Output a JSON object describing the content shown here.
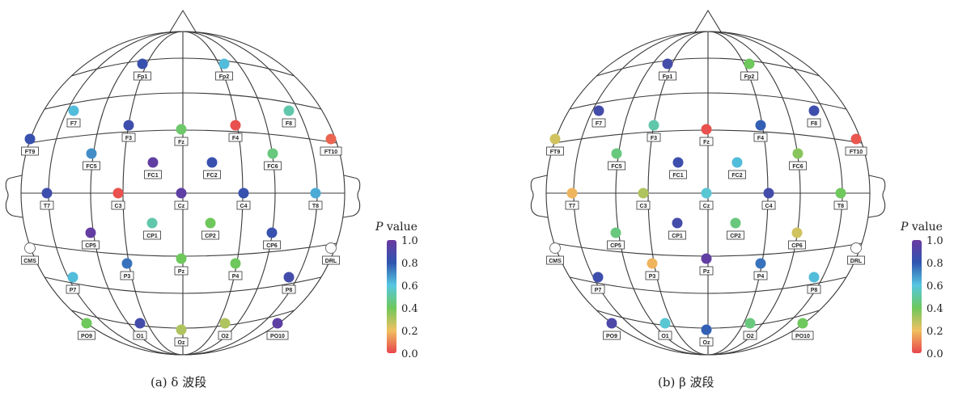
{
  "colors": {
    "stops": [
      "#e8454c",
      "#f0c060",
      "#6ec85c",
      "#56c7e0",
      "#2f55b0",
      "#6a3aa0"
    ],
    "stop_values": [
      0.0,
      0.2,
      0.4,
      0.6,
      0.8,
      1.0
    ],
    "outline": "#3a3a3a",
    "unmeasured_fill": "#ffffff"
  },
  "colorbar": {
    "title_italic": "P",
    "title_rest": " value",
    "ticks": [
      "1.0",
      "0.8",
      "0.6",
      "0.4",
      "0.2",
      "0.0"
    ]
  },
  "panels": [
    {
      "caption": "(a) δ 波段",
      "electrodes": [
        {
          "name": "Fp1",
          "p": 0.83
        },
        {
          "name": "Fp2",
          "p": 0.62
        },
        {
          "name": "F7",
          "p": 0.62
        },
        {
          "name": "F3",
          "p": 0.85
        },
        {
          "name": "Fz",
          "p": 0.42
        },
        {
          "name": "F4",
          "p": 0.02
        },
        {
          "name": "F8",
          "p": 0.52
        },
        {
          "name": "FT9",
          "p": 0.83
        },
        {
          "name": "FC5",
          "p": 0.7
        },
        {
          "name": "FC1",
          "p": 0.97
        },
        {
          "name": "FC2",
          "p": 0.83
        },
        {
          "name": "FC6",
          "p": 0.45
        },
        {
          "name": "FT10",
          "p": 0.05
        },
        {
          "name": "T7",
          "p": 0.85
        },
        {
          "name": "C3",
          "p": 0.02
        },
        {
          "name": "Cz",
          "p": 0.96
        },
        {
          "name": "C4",
          "p": 0.83
        },
        {
          "name": "T8",
          "p": 0.65
        },
        {
          "name": "CMS",
          "p": null
        },
        {
          "name": "CP5",
          "p": 0.98
        },
        {
          "name": "CP1",
          "p": 0.52
        },
        {
          "name": "CP2",
          "p": 0.4
        },
        {
          "name": "CP6",
          "p": 0.83
        },
        {
          "name": "DRL",
          "p": null
        },
        {
          "name": "P7",
          "p": 0.62
        },
        {
          "name": "P3",
          "p": 0.75
        },
        {
          "name": "Pz",
          "p": 0.4
        },
        {
          "name": "P4",
          "p": 0.4
        },
        {
          "name": "P8",
          "p": 0.87
        },
        {
          "name": "PO9",
          "p": 0.4
        },
        {
          "name": "O1",
          "p": 0.87
        },
        {
          "name": "Oz",
          "p": 0.3
        },
        {
          "name": "O2",
          "p": 0.3
        },
        {
          "name": "PO10",
          "p": 0.96
        }
      ]
    },
    {
      "caption": "(b) β 波段",
      "electrodes": [
        {
          "name": "Fp1",
          "p": 0.87
        },
        {
          "name": "Fp2",
          "p": 0.4
        },
        {
          "name": "F7",
          "p": 0.87
        },
        {
          "name": "F3",
          "p": 0.52
        },
        {
          "name": "Fz",
          "p": 0.02
        },
        {
          "name": "F4",
          "p": 0.78
        },
        {
          "name": "F8",
          "p": 0.85
        },
        {
          "name": "FT9",
          "p": 0.25
        },
        {
          "name": "FC5",
          "p": 0.45
        },
        {
          "name": "FC1",
          "p": 0.85
        },
        {
          "name": "FC2",
          "p": 0.62
        },
        {
          "name": "FC6",
          "p": 0.36
        },
        {
          "name": "FT10",
          "p": 0.03
        },
        {
          "name": "T7",
          "p": 0.18
        },
        {
          "name": "C3",
          "p": 0.3
        },
        {
          "name": "Cz",
          "p": 0.58
        },
        {
          "name": "C4",
          "p": 0.87
        },
        {
          "name": "T8",
          "p": 0.4
        },
        {
          "name": "CMS",
          "p": null
        },
        {
          "name": "CP5",
          "p": 0.45
        },
        {
          "name": "CP1",
          "p": 0.87
        },
        {
          "name": "CP2",
          "p": 0.45
        },
        {
          "name": "CP6",
          "p": 0.25
        },
        {
          "name": "DRL",
          "p": null
        },
        {
          "name": "P7",
          "p": 0.85
        },
        {
          "name": "P3",
          "p": 0.18
        },
        {
          "name": "Pz",
          "p": 0.97
        },
        {
          "name": "P4",
          "p": 0.75
        },
        {
          "name": "P8",
          "p": 0.62
        },
        {
          "name": "PO9",
          "p": 0.9
        },
        {
          "name": "O1",
          "p": 0.58
        },
        {
          "name": "Oz",
          "p": 0.78
        },
        {
          "name": "O2",
          "p": 0.45
        },
        {
          "name": "PO10",
          "p": 0.4
        }
      ]
    }
  ]
}
